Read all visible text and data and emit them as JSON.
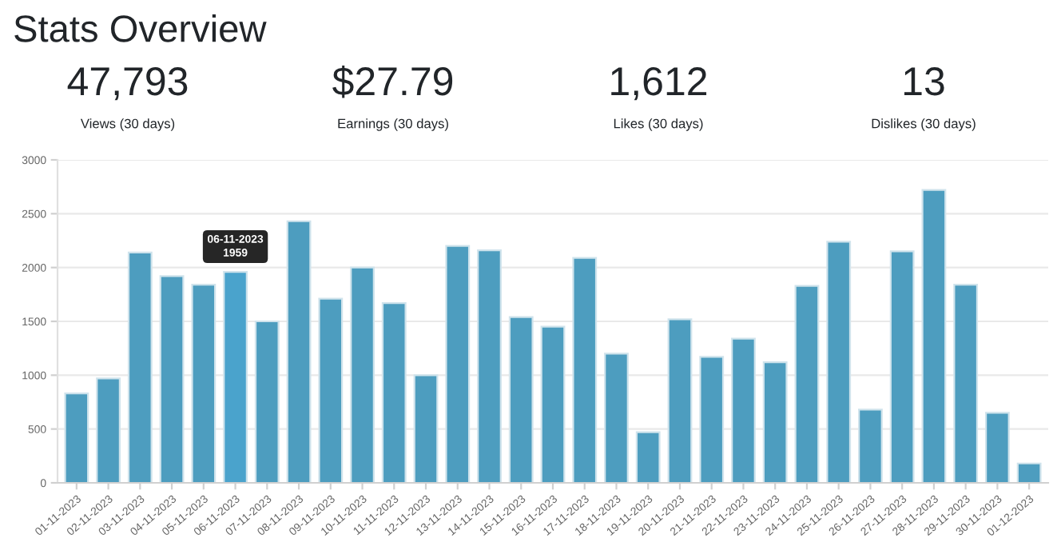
{
  "chart_data": [
    {
      "type": "other",
      "title": "Stats Overview",
      "annotations": [
        "47,793",
        "Views (30 days)",
        "$27.79",
        "Earnings (30 days)",
        "1,612",
        "Likes (30 days)",
        "13",
        "Dislikes (30 days)"
      ]
    },
    {
      "type": "bar",
      "categories": [
        "01-11-2023",
        "02-11-2023",
        "03-11-2023",
        "04-11-2023",
        "05-11-2023",
        "06-11-2023",
        "07-11-2023",
        "08-11-2023",
        "09-11-2023",
        "10-11-2023",
        "11-11-2023",
        "12-11-2023",
        "13-11-2023",
        "14-11-2023",
        "15-11-2023",
        "16-11-2023",
        "17-11-2023",
        "18-11-2023",
        "19-11-2023",
        "20-11-2023",
        "21-11-2023",
        "22-11-2023",
        "23-11-2023",
        "24-11-2023",
        "25-11-2023",
        "26-11-2023",
        "27-11-2023",
        "28-11-2023",
        "29-11-2023",
        "30-11-2023",
        "01-12-2023"
      ],
      "values": [
        830,
        970,
        2140,
        1920,
        1840,
        1959,
        1500,
        2430,
        1710,
        2000,
        1670,
        1000,
        2200,
        2160,
        1540,
        1450,
        2090,
        1200,
        470,
        1520,
        1170,
        1340,
        1120,
        1830,
        2240,
        680,
        2150,
        2720,
        1840,
        650,
        180
      ],
      "colors": [
        "#4d9dbf",
        "#4d9dbf",
        "#4d9dbf",
        "#4d9dbf",
        "#4d9dbf",
        "#4aa3cc",
        "#4d9dbf",
        "#4d9dbf",
        "#4d9dbf",
        "#4d9dbf",
        "#4d9dbf",
        "#4d9dbf",
        "#4d9dbf",
        "#4d9dbf",
        "#4d9dbf",
        "#4d9dbf",
        "#4d9dbf",
        "#4d9dbf",
        "#4d9dbf",
        "#4d9dbf",
        "#4d9dbf",
        "#4d9dbf",
        "#4d9dbf",
        "#4d9dbf",
        "#4d9dbf",
        "#4d9dbf",
        "#4d9dbf",
        "#4d9dbf",
        "#4d9dbf",
        "#4d9dbf",
        "#4d9dbf"
      ],
      "ylim": [
        0,
        3000
      ],
      "yticks": [
        0,
        500,
        1000,
        1500,
        2000,
        2500,
        3000
      ],
      "grid": "y",
      "annotations": [
        {
          "text": "06-11-2023\n1959",
          "x": "06-11-2023",
          "y": 1959
        }
      ]
    }
  ]
}
